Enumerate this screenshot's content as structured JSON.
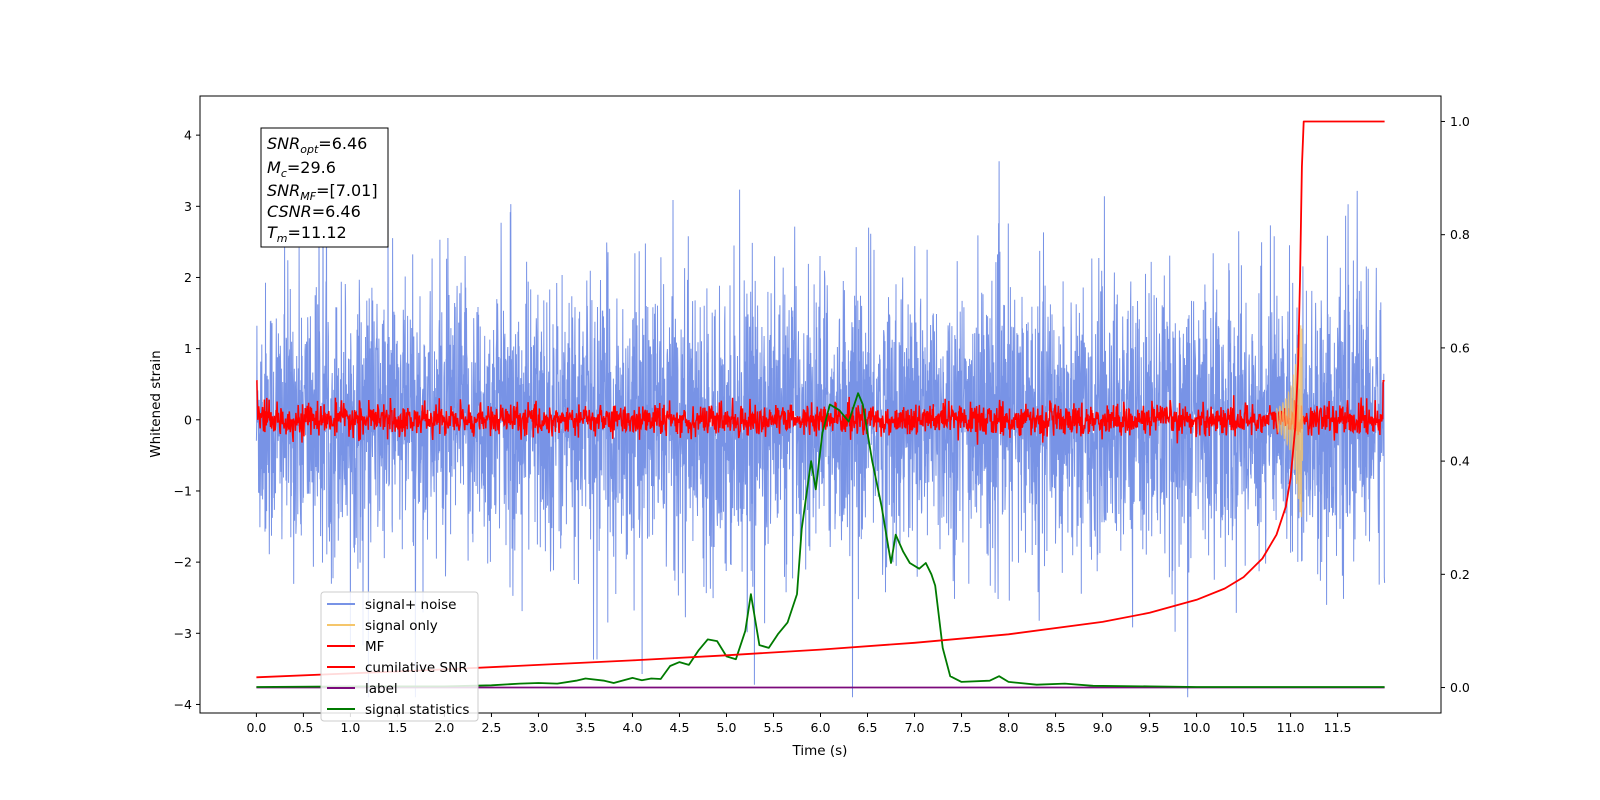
{
  "chart_data": {
    "type": "line",
    "xlabel": "Time (s)",
    "ylabel": "Whitened strain",
    "ylabel_right": "",
    "xlim": [
      -0.6,
      12.6
    ],
    "ylim": [
      -4.12,
      4.55
    ],
    "ylim_right": [
      -0.045,
      1.045
    ],
    "x_ticks": [
      "0.0",
      "0.5",
      "1.0",
      "1.5",
      "2.0",
      "2.5",
      "3.0",
      "3.5",
      "4.0",
      "4.5",
      "5.0",
      "5.5",
      "6.0",
      "6.5",
      "7.0",
      "7.5",
      "8.0",
      "8.5",
      "9.0",
      "9.5",
      "10.0",
      "10.5",
      "11.0",
      "11.5"
    ],
    "y_ticks": [
      "4",
      "3",
      "2",
      "1",
      "0",
      "−1",
      "−2",
      "−3",
      "−4"
    ],
    "y_ticks_right": [
      "1.0",
      "0.8",
      "0.6",
      "0.4",
      "0.2",
      "0.0"
    ],
    "grid": false,
    "legend_position": "lower-left",
    "annotation": {
      "snr_opt": {
        "main": "SNR",
        "sub": "opt",
        "value": "=6.46"
      },
      "mc": {
        "main": "M",
        "sub": "c",
        "value": "=29.6"
      },
      "snr_mf": {
        "main": "SNR",
        "sub": "MF",
        "value": "=[7.01]"
      },
      "csnr": {
        "main": "CSNR",
        "value": "=6.46"
      },
      "tm": {
        "main": "T",
        "sub": "m",
        "value": "=11.12"
      }
    },
    "series": [
      {
        "name": "signal+ noise",
        "color": "#7893e6",
        "axis": "left",
        "description": "whitened noisy strain, amplitude about ±2 with spikes to about ±4, t = 0 to 12 s"
      },
      {
        "name": "signal only",
        "color": "#f5c66b",
        "axis": "left",
        "description": "chirp waveform near merger",
        "x": [
          10.85,
          10.9,
          10.95,
          11.0,
          11.05,
          11.1,
          11.12,
          11.13
        ],
        "envelope": [
          0.15,
          0.2,
          0.3,
          0.45,
          0.75,
          1.3,
          1.4,
          0.0
        ]
      },
      {
        "name": "MF",
        "color": "#ff0000",
        "axis": "left",
        "description": "matched-filter output, fluctuating about 0 with amplitude about ±0.3"
      },
      {
        "name": "cumilative SNR",
        "color": "#ff0000",
        "axis": "right",
        "x": [
          0.0,
          1.0,
          2.0,
          3.0,
          4.0,
          5.0,
          6.0,
          7.0,
          8.0,
          9.0,
          9.5,
          10.0,
          10.3,
          10.5,
          10.7,
          10.85,
          10.95,
          11.0,
          11.05,
          11.08,
          11.1,
          11.12,
          11.14,
          12.0
        ],
        "values": [
          0.018,
          0.025,
          0.032,
          0.04,
          0.048,
          0.057,
          0.067,
          0.079,
          0.094,
          0.116,
          0.132,
          0.155,
          0.175,
          0.195,
          0.228,
          0.27,
          0.32,
          0.37,
          0.46,
          0.57,
          0.72,
          0.92,
          1.0,
          1.0
        ]
      },
      {
        "name": "label",
        "color": "#7b0a7b",
        "axis": "right",
        "x": [
          0.0,
          12.0
        ],
        "values": [
          0.0,
          0.0
        ]
      },
      {
        "name": "signal statistics",
        "color": "#007a00",
        "axis": "right",
        "x": [
          0.0,
          1.0,
          2.0,
          2.5,
          2.8,
          3.0,
          3.2,
          3.4,
          3.5,
          3.7,
          3.8,
          4.0,
          4.1,
          4.2,
          4.3,
          4.4,
          4.5,
          4.6,
          4.7,
          4.8,
          4.9,
          5.0,
          5.1,
          5.2,
          5.26,
          5.35,
          5.45,
          5.55,
          5.65,
          5.75,
          5.8,
          5.9,
          5.95,
          6.02,
          6.1,
          6.2,
          6.3,
          6.4,
          6.45,
          6.55,
          6.65,
          6.75,
          6.8,
          6.88,
          6.95,
          7.05,
          7.12,
          7.18,
          7.22,
          7.3,
          7.38,
          7.5,
          7.8,
          7.9,
          8.0,
          8.3,
          8.6,
          8.9,
          9.5,
          10.0,
          11.0,
          12.0
        ],
        "values": [
          0.001,
          0.002,
          0.002,
          0.004,
          0.007,
          0.008,
          0.007,
          0.012,
          0.016,
          0.012,
          0.008,
          0.017,
          0.013,
          0.016,
          0.015,
          0.038,
          0.045,
          0.04,
          0.065,
          0.085,
          0.082,
          0.055,
          0.05,
          0.1,
          0.165,
          0.075,
          0.07,
          0.095,
          0.115,
          0.165,
          0.28,
          0.4,
          0.35,
          0.45,
          0.5,
          0.49,
          0.47,
          0.52,
          0.5,
          0.4,
          0.32,
          0.22,
          0.27,
          0.24,
          0.22,
          0.21,
          0.22,
          0.2,
          0.18,
          0.07,
          0.02,
          0.01,
          0.012,
          0.02,
          0.01,
          0.005,
          0.007,
          0.003,
          0.002,
          0.001,
          0.001,
          0.001
        ]
      }
    ]
  }
}
